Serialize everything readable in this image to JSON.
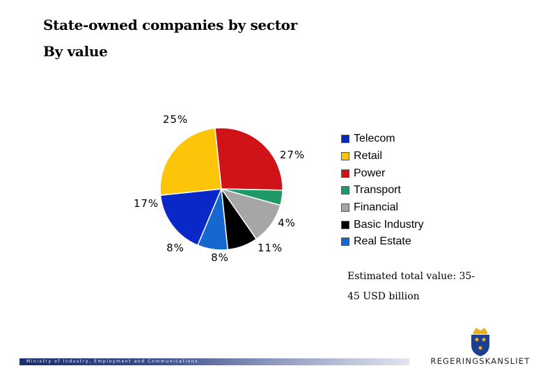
{
  "slide": {
    "title": "State-owned companies by sector",
    "subtitle": "By value",
    "note": "Estimated total value: 35-45 USD billion",
    "footer_text": "Ministry of Industry, Employment and Communications",
    "logo_text": "REGERINGSKANSLIET"
  },
  "chart_data": {
    "type": "pie",
    "start_angle_deg": -96,
    "direction": "clockwise",
    "slices": [
      {
        "name": "Power",
        "value": 27,
        "label": "27%",
        "color": "#d01319"
      },
      {
        "name": "Transport",
        "value": 4,
        "label": "4%",
        "color": "#1f9a66"
      },
      {
        "name": "Financial",
        "value": 11,
        "label": "11%",
        "color": "#a6a6a6"
      },
      {
        "name": "Basic Industry",
        "value": 8,
        "label": "8%",
        "color": "#000000"
      },
      {
        "name": "Real Estate",
        "value": 8,
        "label": "8%",
        "color": "#1668d0"
      },
      {
        "name": "Telecom",
        "value": 17,
        "label": "17%",
        "color": "#0a28c8"
      },
      {
        "name": "Retail",
        "value": 25,
        "label": "25%",
        "color": "#fcc50a"
      }
    ],
    "legend": {
      "placement": "right",
      "entries": [
        {
          "name": "Telecom",
          "color": "#0a28c8"
        },
        {
          "name": "Retail",
          "color": "#fcc50a"
        },
        {
          "name": "Power",
          "color": "#d01319"
        },
        {
          "name": "Transport",
          "color": "#1f9a66"
        },
        {
          "name": "Financial",
          "color": "#a6a6a6"
        },
        {
          "name": "Basic Industry",
          "color": "#000000"
        },
        {
          "name": "Real Estate",
          "color": "#1668d0"
        }
      ]
    }
  }
}
